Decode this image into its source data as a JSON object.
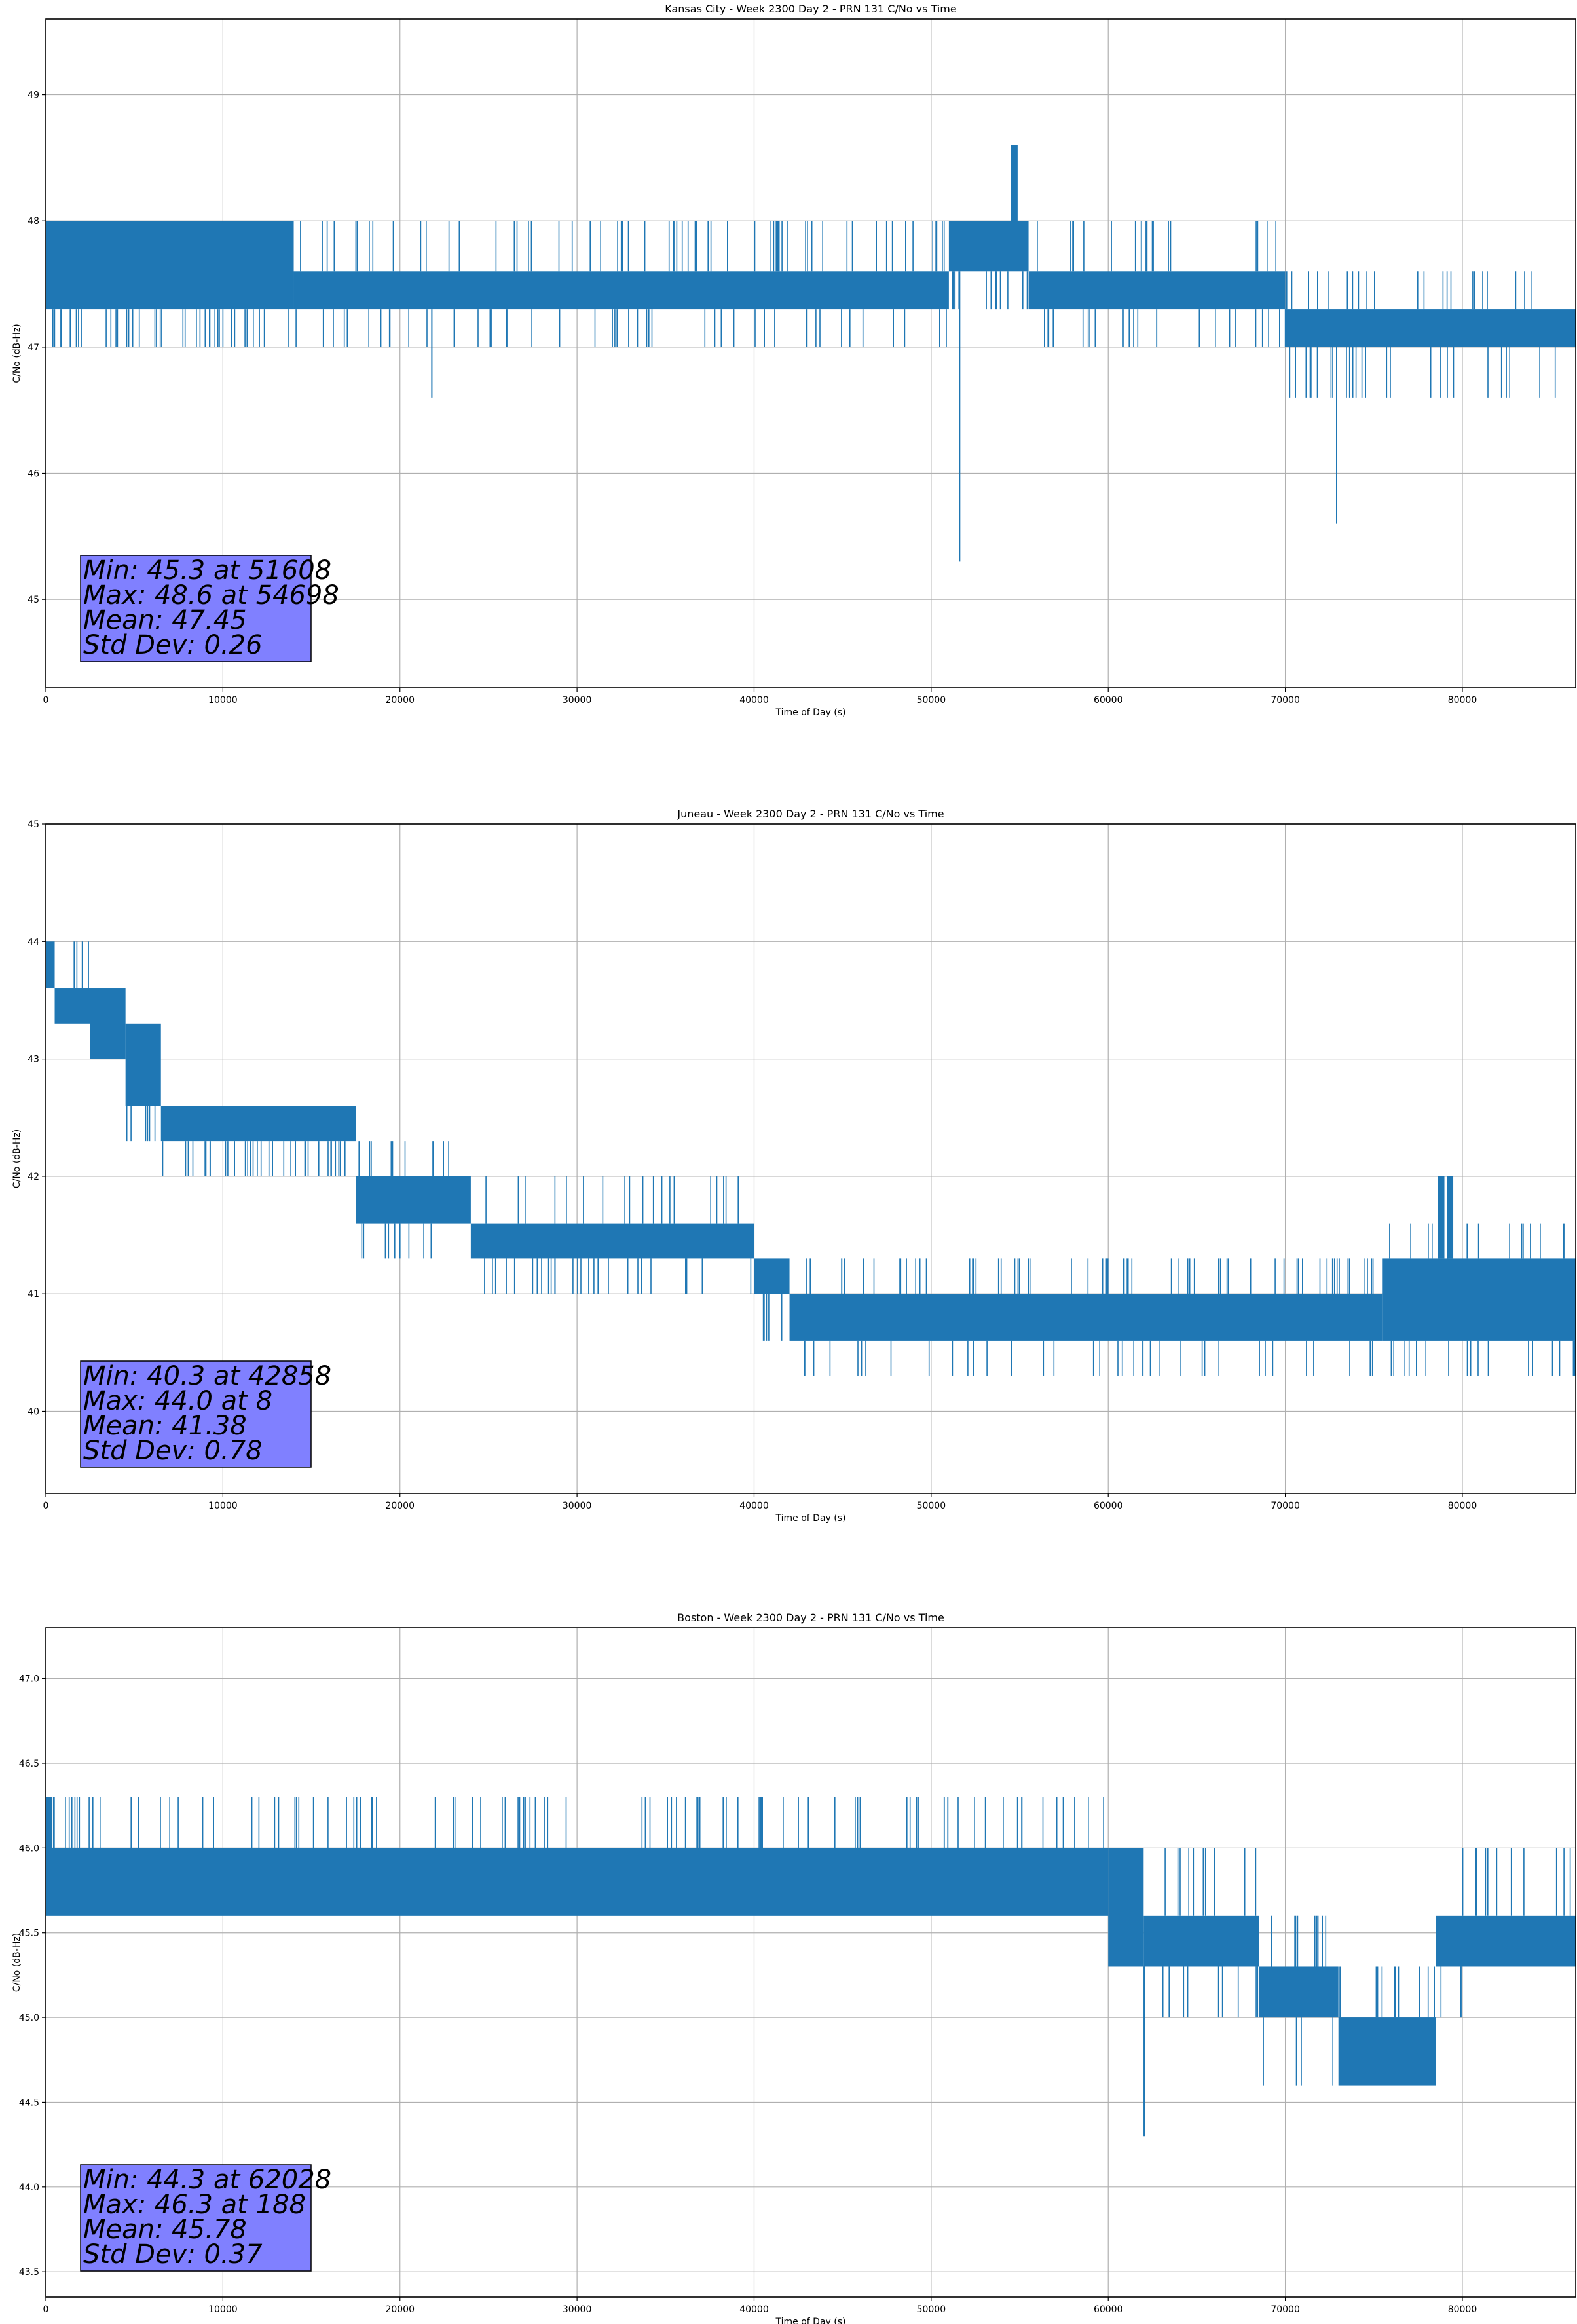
{
  "figure": {
    "background": "#ffffff"
  },
  "style": {
    "line_color": "#1f77b4",
    "grid_color": "#b0b0b0",
    "axis_color": "#000000",
    "box_fill": "#8080ff",
    "box_edge": "#000000"
  },
  "chart_data": [
    {
      "type": "line",
      "title": "Kansas City - Week 2300 Day 2 - PRN 131 C/No vs Time",
      "xlabel": "Time of Day (s)",
      "ylabel": "C/No (dB-Hz)",
      "xlim": [
        0,
        86400
      ],
      "ylim": [
        44.3,
        49.6
      ],
      "xticks": [
        0,
        10000,
        20000,
        30000,
        40000,
        50000,
        60000,
        70000,
        80000
      ],
      "yticks": [
        45,
        46,
        47,
        48,
        49
      ],
      "ytick_labels": [
        "45",
        "46",
        "47",
        "48",
        "49"
      ],
      "grid": true,
      "series": [
        {
          "segments": [
            {
              "x": [
                0,
                14000
              ],
              "low": 47.3,
              "high": 48.0,
              "spike_hi": 48.0,
              "spike_lo": 47.0
            },
            {
              "x": [
                14000,
                43000
              ],
              "low": 47.3,
              "high": 47.6,
              "spike_hi": 48.0,
              "spike_lo": 47.0
            },
            {
              "x": [
                43000,
                51000
              ],
              "low": 47.3,
              "high": 47.6,
              "spike_hi": 48.0,
              "spike_lo": 47.0
            },
            {
              "x": [
                51000,
                55500
              ],
              "low": 47.6,
              "high": 48.0,
              "spike_hi": 48.0,
              "spike_lo": 47.3
            },
            {
              "x": [
                55500,
                70000
              ],
              "low": 47.3,
              "high": 47.6,
              "spike_hi": 48.0,
              "spike_lo": 47.0
            },
            {
              "x": [
                70000,
                86400
              ],
              "low": 47.0,
              "high": 47.3,
              "spike_hi": 47.6,
              "spike_lo": 46.6
            }
          ],
          "dips": [
            [
              21800,
              46.6
            ],
            [
              51608,
              45.3
            ],
            [
              72900,
              45.6
            ]
          ],
          "peaks": [
            [
              54698,
              48.6
            ]
          ]
        }
      ],
      "stats": {
        "min": "Min: 45.3 at 51608",
        "max": "Max: 48.6 at 54698",
        "mean": "Mean: 47.45",
        "std": "Std Dev: 0.26"
      }
    },
    {
      "type": "line",
      "title": "Juneau - Week 2300 Day 2 - PRN 131 C/No vs Time",
      "xlabel": "Time of Day (s)",
      "ylabel": "C/No (dB-Hz)",
      "xlim": [
        0,
        86400
      ],
      "ylim": [
        39.3,
        45.0
      ],
      "xticks": [
        0,
        10000,
        20000,
        30000,
        40000,
        50000,
        60000,
        70000,
        80000
      ],
      "yticks": [
        40,
        41,
        42,
        43,
        44,
        45
      ],
      "ytick_labels": [
        "40",
        "41",
        "42",
        "43",
        "44",
        "45"
      ],
      "grid": true,
      "series": [
        {
          "segments": [
            {
              "x": [
                0,
                500
              ],
              "low": 43.6,
              "high": 44.0,
              "spike_hi": 44.0,
              "spike_lo": 43.6
            },
            {
              "x": [
                500,
                2500
              ],
              "low": 43.3,
              "high": 43.6,
              "spike_hi": 44.0,
              "spike_lo": 43.3
            },
            {
              "x": [
                2500,
                4500
              ],
              "low": 43.0,
              "high": 43.6,
              "spike_hi": 43.6,
              "spike_lo": 43.0
            },
            {
              "x": [
                4500,
                6500
              ],
              "low": 42.6,
              "high": 43.3,
              "spike_hi": 43.3,
              "spike_lo": 42.3
            },
            {
              "x": [
                6500,
                17500
              ],
              "low": 42.3,
              "high": 42.6,
              "spike_hi": 42.6,
              "spike_lo": 42.0
            },
            {
              "x": [
                17500,
                24000
              ],
              "low": 41.6,
              "high": 42.0,
              "spike_hi": 42.3,
              "spike_lo": 41.3
            },
            {
              "x": [
                24000,
                40000
              ],
              "low": 41.3,
              "high": 41.6,
              "spike_hi": 42.0,
              "spike_lo": 41.0
            },
            {
              "x": [
                40000,
                42000
              ],
              "low": 41.0,
              "high": 41.3,
              "spike_hi": 41.3,
              "spike_lo": 40.6
            },
            {
              "x": [
                42000,
                75500
              ],
              "low": 40.6,
              "high": 41.0,
              "spike_hi": 41.3,
              "spike_lo": 40.3
            },
            {
              "x": [
                75500,
                86400
              ],
              "low": 40.6,
              "high": 41.3,
              "spike_hi": 41.6,
              "spike_lo": 40.3
            }
          ],
          "dips": [
            [
              42858,
              40.3
            ]
          ],
          "peaks": [
            [
              8,
              44.0
            ],
            [
              78800,
              42.0
            ],
            [
              79300,
              42.0
            ]
          ]
        }
      ],
      "stats": {
        "min": "Min: 40.3 at 42858",
        "max": "Max: 44.0 at 8",
        "mean": "Mean: 41.38",
        "std": "Std Dev: 0.78"
      }
    },
    {
      "type": "line",
      "title": "Boston - Week 2300 Day 2 - PRN 131 C/No vs Time",
      "xlabel": "Time of Day (s)",
      "ylabel": "C/No (dB-Hz)",
      "xlim": [
        0,
        86400
      ],
      "ylim": [
        43.35,
        47.3
      ],
      "xticks": [
        0,
        10000,
        20000,
        30000,
        40000,
        50000,
        60000,
        70000,
        80000
      ],
      "yticks": [
        43.5,
        44.0,
        44.5,
        45.0,
        45.5,
        46.0,
        46.5,
        47.0
      ],
      "ytick_labels": [
        "43.5",
        "44.0",
        "44.5",
        "45.0",
        "45.5",
        "46.0",
        "46.5",
        "47.0"
      ],
      "grid": true,
      "series": [
        {
          "segments": [
            {
              "x": [
                0,
                60000
              ],
              "low": 45.6,
              "high": 46.0,
              "spike_hi": 46.3,
              "spike_lo": 45.6
            },
            {
              "x": [
                60000,
                62000
              ],
              "low": 45.3,
              "high": 46.0,
              "spike_hi": 46.0,
              "spike_lo": 45.3
            },
            {
              "x": [
                62000,
                68500
              ],
              "low": 45.3,
              "high": 45.6,
              "spike_hi": 46.0,
              "spike_lo": 45.0
            },
            {
              "x": [
                68500,
                73000
              ],
              "low": 45.0,
              "high": 45.3,
              "spike_hi": 45.6,
              "spike_lo": 44.6
            },
            {
              "x": [
                73000,
                78500
              ],
              "low": 44.6,
              "high": 45.0,
              "spike_hi": 45.3,
              "spike_lo": 44.6
            },
            {
              "x": [
                78500,
                80000
              ],
              "low": 45.3,
              "high": 45.6,
              "spike_hi": 45.6,
              "spike_lo": 45.0
            },
            {
              "x": [
                80000,
                86400
              ],
              "low": 45.3,
              "high": 45.6,
              "spike_hi": 46.0,
              "spike_lo": 45.3
            }
          ],
          "dips": [
            [
              62028,
              44.3
            ]
          ],
          "peaks": [
            [
              188,
              46.3
            ]
          ]
        }
      ],
      "stats": {
        "min": "Min: 44.3 at 62028",
        "max": "Max: 46.3 at 188",
        "mean": "Mean: 45.78",
        "std": "Std Dev: 0.37"
      }
    }
  ]
}
